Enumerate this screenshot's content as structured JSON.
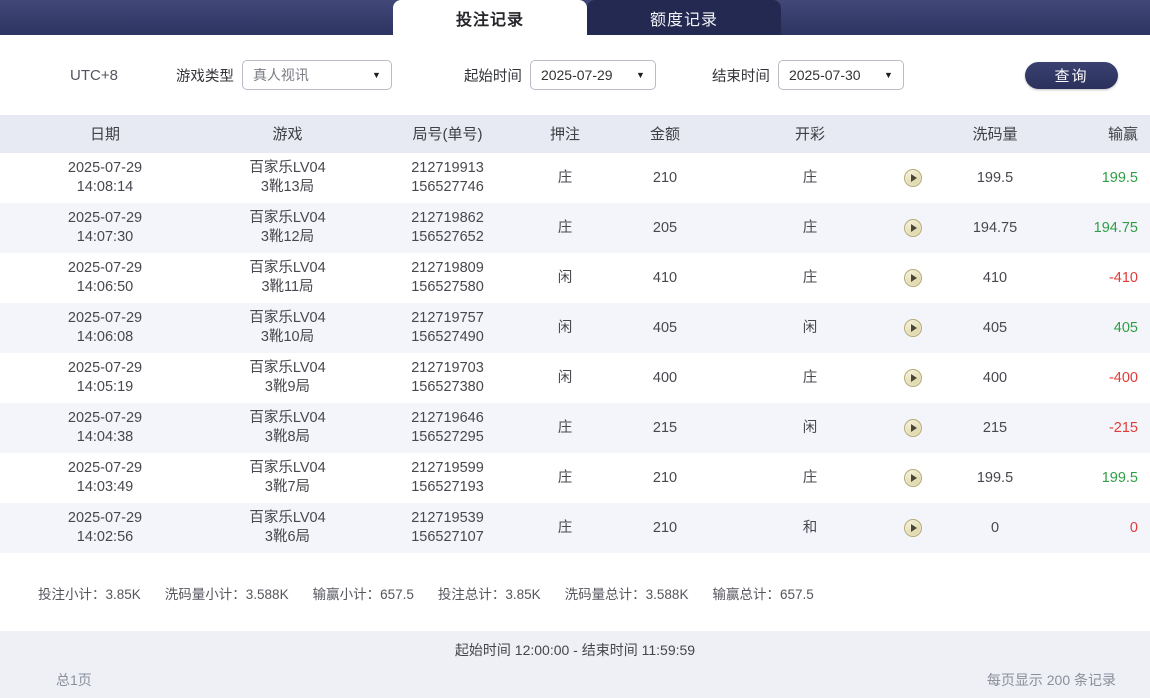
{
  "tabs": [
    {
      "label": "投注记录",
      "active": true
    },
    {
      "label": "额度记录",
      "active": false
    }
  ],
  "filters": {
    "timezone": "UTC+8",
    "game_type_label": "游戏类型",
    "game_type_value": "真人视讯",
    "start_label": "起始时间",
    "start_value": "2025-07-29",
    "end_label": "结束时间",
    "end_value": "2025-07-30",
    "dropdown_arrow": "▼",
    "query_label": "查询"
  },
  "table": {
    "headers": [
      "日期",
      "游戏",
      "局号(单号)",
      "押注",
      "金额",
      "开彩",
      "",
      "洗码量",
      "输赢"
    ],
    "rows": [
      {
        "date": "2025-07-29",
        "time": "14:08:14",
        "game": "百家乐LV04",
        "round": "3靴13局",
        "no1": "212719913",
        "no2": "156527746",
        "bet": "庄",
        "amount": "210",
        "result": "庄",
        "rolling": "199.5",
        "winloss": "199.5",
        "trend": "up"
      },
      {
        "date": "2025-07-29",
        "time": "14:07:30",
        "game": "百家乐LV04",
        "round": "3靴12局",
        "no1": "212719862",
        "no2": "156527652",
        "bet": "庄",
        "amount": "205",
        "result": "庄",
        "rolling": "194.75",
        "winloss": "194.75",
        "trend": "up"
      },
      {
        "date": "2025-07-29",
        "time": "14:06:50",
        "game": "百家乐LV04",
        "round": "3靴11局",
        "no1": "212719809",
        "no2": "156527580",
        "bet": "闲",
        "amount": "410",
        "result": "庄",
        "rolling": "410",
        "winloss": "-410",
        "trend": "down"
      },
      {
        "date": "2025-07-29",
        "time": "14:06:08",
        "game": "百家乐LV04",
        "round": "3靴10局",
        "no1": "212719757",
        "no2": "156527490",
        "bet": "闲",
        "amount": "405",
        "result": "闲",
        "rolling": "405",
        "winloss": "405",
        "trend": "up"
      },
      {
        "date": "2025-07-29",
        "time": "14:05:19",
        "game": "百家乐LV04",
        "round": "3靴9局",
        "no1": "212719703",
        "no2": "156527380",
        "bet": "闲",
        "amount": "400",
        "result": "庄",
        "rolling": "400",
        "winloss": "-400",
        "trend": "down"
      },
      {
        "date": "2025-07-29",
        "time": "14:04:38",
        "game": "百家乐LV04",
        "round": "3靴8局",
        "no1": "212719646",
        "no2": "156527295",
        "bet": "庄",
        "amount": "215",
        "result": "闲",
        "rolling": "215",
        "winloss": "-215",
        "trend": "down"
      },
      {
        "date": "2025-07-29",
        "time": "14:03:49",
        "game": "百家乐LV04",
        "round": "3靴7局",
        "no1": "212719599",
        "no2": "156527193",
        "bet": "庄",
        "amount": "210",
        "result": "庄",
        "rolling": "199.5",
        "winloss": "199.5",
        "trend": "up"
      },
      {
        "date": "2025-07-29",
        "time": "14:02:56",
        "game": "百家乐LV04",
        "round": "3靴6局",
        "no1": "212719539",
        "no2": "156527107",
        "bet": "庄",
        "amount": "210",
        "result": "和",
        "rolling": "0",
        "winloss": "0",
        "trend": "down"
      }
    ]
  },
  "summary": [
    {
      "label": "投注小计：",
      "value": "3.85K"
    },
    {
      "label": "洗码量小计：",
      "value": "3.588K"
    },
    {
      "label": "输赢小计：",
      "value": "657.5"
    },
    {
      "label": "投注总计：",
      "value": "3.85K"
    },
    {
      "label": "洗码量总计：",
      "value": "3.588K"
    },
    {
      "label": "输赢总计：",
      "value": "657.5"
    }
  ],
  "footer": {
    "time_range": "起始时间 12:00:00 - 结束时间 11:59:59",
    "page_info": "总1页",
    "per_page": "每页显示 200 条记录"
  },
  "colors": {
    "topbar": "#2e3460",
    "inactive_tab": "#232950",
    "header_bg": "#e8eaf3",
    "stripe_bg": "#f4f5fa",
    "win_green": "#2f9e45",
    "loss_red": "#e23c39",
    "play_icon_bg": "#ddd3a0"
  }
}
